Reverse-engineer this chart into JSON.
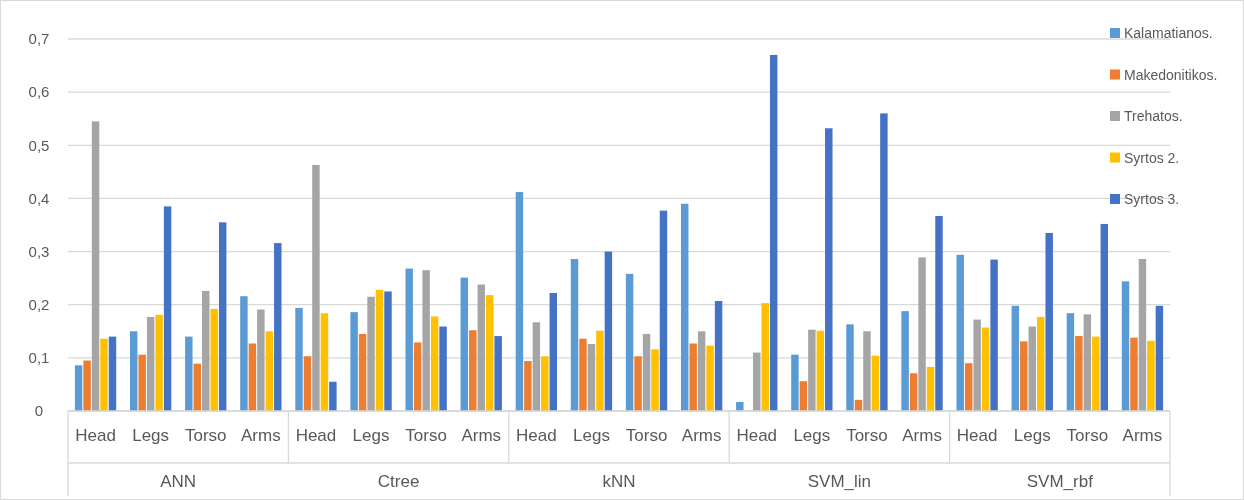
{
  "chart_data": {
    "type": "bar",
    "categories": [
      "Head",
      "Legs",
      "Torso",
      "Arms",
      "Head",
      "Legs",
      "Torso",
      "Arms",
      "Head",
      "Legs",
      "Torso",
      "Arms",
      "Head",
      "Legs",
      "Torso",
      "Arms",
      "Head",
      "Legs",
      "Torso",
      "Arms"
    ],
    "annotations": [
      "ANN",
      "Ctree",
      "kNN",
      "SVM_lin",
      "SVM_rbf"
    ],
    "series": [
      {
        "name": "Kalamatianos.",
        "color": "#5b9bd5",
        "values": [
          0.086,
          0.15,
          0.14,
          0.216,
          0.194,
          0.186,
          0.268,
          0.251,
          0.412,
          0.286,
          0.258,
          0.39,
          0.017,
          0.106,
          0.163,
          0.188,
          0.294,
          0.198,
          0.184,
          0.244
        ]
      },
      {
        "name": "Makedonitikos.",
        "color": "#ed7d31",
        "values": [
          0.095,
          0.106,
          0.089,
          0.127,
          0.103,
          0.145,
          0.129,
          0.152,
          0.094,
          0.136,
          0.103,
          0.127,
          0,
          0.056,
          0.021,
          0.071,
          0.09,
          0.131,
          0.141,
          0.138
        ]
      },
      {
        "name": "Trehatos.",
        "color": "#a5a5a5",
        "values": [
          0.545,
          0.177,
          0.226,
          0.191,
          0.463,
          0.215,
          0.265,
          0.238,
          0.167,
          0.126,
          0.145,
          0.15,
          0.11,
          0.153,
          0.15,
          0.289,
          0.172,
          0.159,
          0.182,
          0.286
        ]
      },
      {
        "name": "Syrtos 2.",
        "color": "#ffc000",
        "values": [
          0.136,
          0.181,
          0.192,
          0.15,
          0.184,
          0.228,
          0.178,
          0.218,
          0.103,
          0.151,
          0.116,
          0.123,
          0.203,
          0.151,
          0.104,
          0.083,
          0.157,
          0.177,
          0.14,
          0.132
        ]
      },
      {
        "name": "Syrtos 3.",
        "color": "#4472c4",
        "values": [
          0.14,
          0.385,
          0.355,
          0.316,
          0.055,
          0.225,
          0.159,
          0.141,
          0.222,
          0.3,
          0.377,
          0.207,
          0.67,
          0.532,
          0.56,
          0.367,
          0.285,
          0.335,
          0.352,
          0.198
        ]
      }
    ],
    "ylim": [
      0,
      0.7
    ],
    "yticks": [
      0,
      {
        "value": 0.1,
        "label": "0,1"
      },
      {
        "value": 0.2,
        "label": "0,2"
      },
      {
        "value": 0.3,
        "label": "0,3"
      },
      {
        "value": 0.4,
        "label": "0,4"
      },
      {
        "value": 0.5,
        "label": "0,5"
      },
      {
        "value": 0.6,
        "label": "0,6"
      },
      {
        "value": 0.7,
        "label": "0,7"
      }
    ],
    "grid": "y",
    "legend": "top right"
  }
}
